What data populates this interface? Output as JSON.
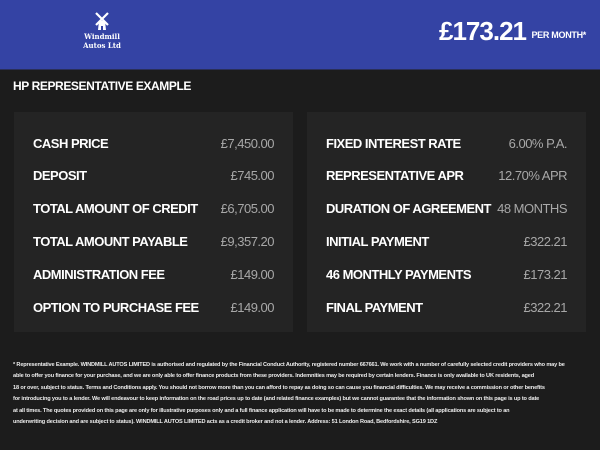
{
  "header": {
    "logo_text": [
      "Windmill",
      "Autos Ltd"
    ],
    "monthly_price": "£173.21",
    "per_month_label": "PER MONTH*",
    "brand_color": "#3443a4"
  },
  "title": "HP REPRESENTATIVE EXAMPLE",
  "left": [
    {
      "label": "CASH PRICE",
      "value": "£7,450.00"
    },
    {
      "label": "DEPOSIT",
      "value": "£745.00"
    },
    {
      "label": "TOTAL AMOUNT OF CREDIT",
      "value": "£6,705.00"
    },
    {
      "label": "TOTAL AMOUNT PAYABLE",
      "value": "£9,357.20"
    },
    {
      "label": "ADMINISTRATION FEE",
      "value": "£149.00"
    },
    {
      "label": "OPTION TO PURCHASE FEE",
      "value": "£149.00"
    }
  ],
  "right": [
    {
      "label": "FIXED INTEREST RATE",
      "value": "6.00% P.A."
    },
    {
      "label": "REPRESENTATIVE APR",
      "value": "12.70% APR"
    },
    {
      "label": "DURATION OF AGREEMENT",
      "value": "48 MONTHS"
    },
    {
      "label": "INITIAL PAYMENT",
      "value": "£322.21"
    },
    {
      "label": "46 MONTHLY PAYMENTS",
      "value": "£173.21"
    },
    {
      "label": "FINAL PAYMENT",
      "value": "£322.21"
    }
  ],
  "footer": [
    "* Representative Example. WINDMILL AUTOS LIMITED is authorised and regulated by the Financial Conduct Authority, registered number 667661. We work with a number of carefully selected credit providers who may be",
    "able to offer you finance for your purchase, and we are only able to offer finance products from these providers. Indemnities may be required by certain lenders. Finance is only available to UK residents, aged",
    "18 or over, subject to status. Terms and Conditions apply. You should not borrow more than you can afford to repay as doing so can cause you financial difficulties. We may receive a commission or other benefits",
    "for introducing you to a lender. We will endeavour to keep information on the road prices up to date (and related finance examples) but we cannot guarantee that the information shown on this page is up to date",
    "at all times. The quotes provided on this page are only for illustrative purposes only and a full finance application will have to be made to determine the exact details (all applications are subject to an",
    "underwriting decision and are subject to status). WINDMILL AUTOS LIMITED acts as a credit broker and not a lender. Address: 51 London Road, Bedfordshire, SG19 1DZ"
  ]
}
